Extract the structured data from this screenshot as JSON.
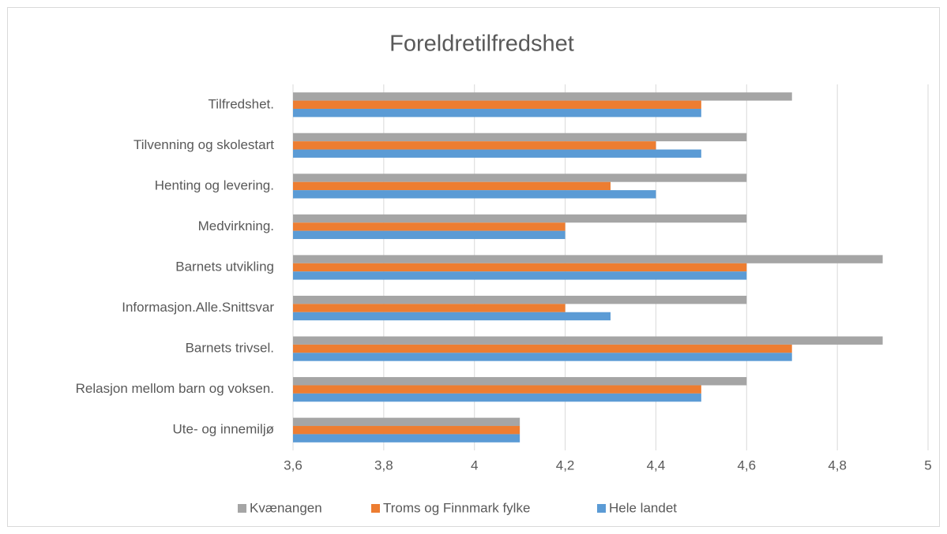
{
  "chart_data": {
    "type": "bar",
    "orientation": "horizontal",
    "title": "Foreldretilfredshet",
    "categories": [
      "Tilfredshet.",
      "Tilvenning og skolestart",
      "Henting og levering.",
      "Medvirkning.",
      "Barnets utvikling",
      "Informasjon.Alle.Snittsvar",
      "Barnets trivsel.",
      "Relasjon mellom barn og voksen.",
      "Ute- og innemiljø"
    ],
    "series": [
      {
        "name": "Kvænangen",
        "color": "#a5a5a5",
        "values": [
          4.7,
          4.6,
          4.6,
          4.6,
          4.9,
          4.6,
          4.9,
          4.6,
          4.1
        ]
      },
      {
        "name": "Troms og Finnmark fylke",
        "color": "#ed7d31",
        "values": [
          4.5,
          4.4,
          4.3,
          4.2,
          4.6,
          4.2,
          4.7,
          4.5,
          4.1
        ]
      },
      {
        "name": "Hele landet",
        "color": "#5b9bd5",
        "values": [
          4.5,
          4.5,
          4.4,
          4.2,
          4.6,
          4.3,
          4.7,
          4.5,
          4.1
        ]
      }
    ],
    "xlim": [
      3.6,
      5
    ],
    "xticks": [
      {
        "value": 3.6,
        "label": "3,6"
      },
      {
        "value": 3.8,
        "label": "3,8"
      },
      4,
      {
        "value": 4.2,
        "label": "4,2"
      },
      {
        "value": 4.4,
        "label": "4,4"
      },
      {
        "value": 4.6,
        "label": "4,6"
      },
      {
        "value": 4.8,
        "label": "4,8"
      },
      5
    ],
    "grid": true,
    "legend": "bottom"
  }
}
